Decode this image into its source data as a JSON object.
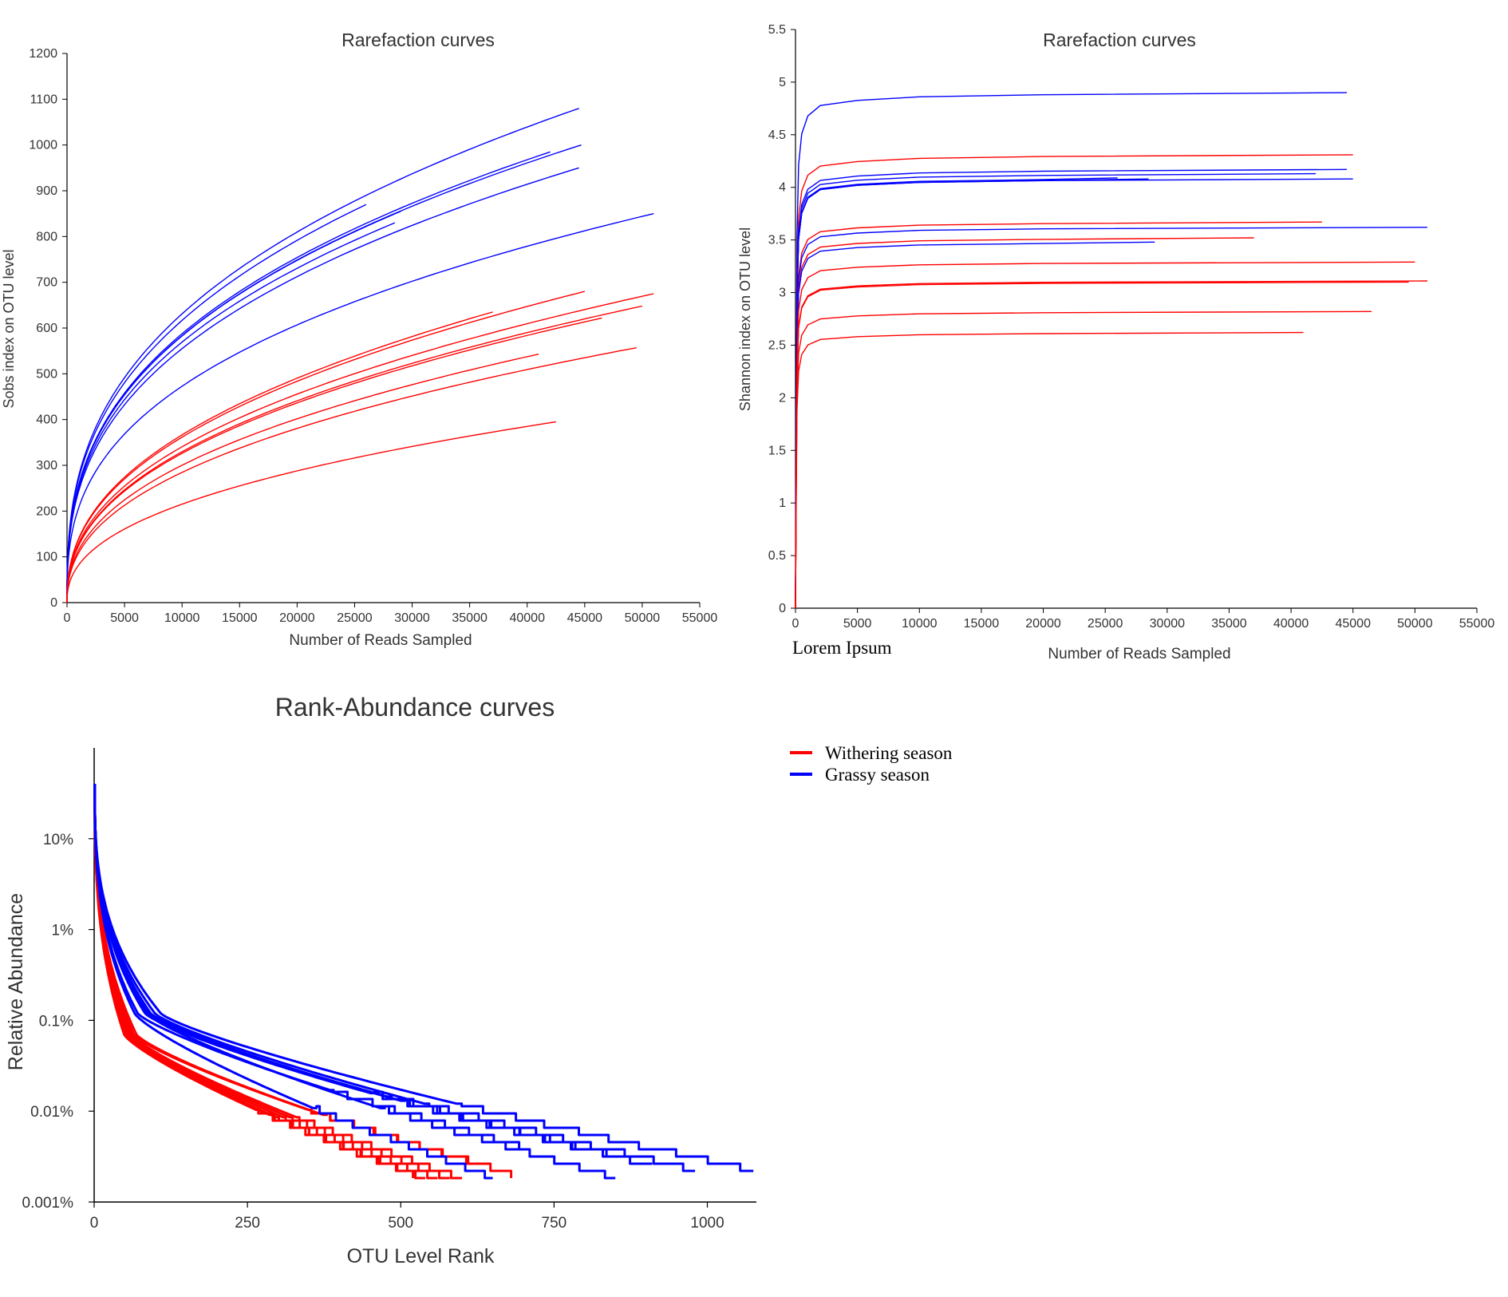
{
  "colors": {
    "withering": "#ff0000",
    "grassy": "#0000ff",
    "axis": "#000000",
    "text": "#333333"
  },
  "legend": {
    "items": [
      {
        "label": "Withering season",
        "color": "#ff0000"
      },
      {
        "label": "Grassy season",
        "color": "#0000ff"
      }
    ]
  },
  "annotation": "Lorem Ipsum",
  "chart_data": [
    {
      "id": "sobs",
      "type": "line",
      "title": "Rarefaction curves",
      "xlabel": "Number of Reads Sampled",
      "ylabel": "Sobs index on OTU level",
      "xlim": [
        0,
        55000
      ],
      "ylim": [
        0,
        1200
      ],
      "xticks": [
        "0",
        "5000",
        "10000",
        "15000",
        "20000",
        "25000",
        "30000",
        "35000",
        "40000",
        "45000",
        "50000",
        "55000"
      ],
      "yticks": [
        "0",
        "100",
        "200",
        "300",
        "400",
        "500",
        "600",
        "700",
        "800",
        "900",
        "1000",
        "1100",
        "1200"
      ],
      "series": [
        {
          "group": "grassy",
          "end_x": 44500,
          "end_y": 1080
        },
        {
          "group": "grassy",
          "end_x": 44700,
          "end_y": 1000
        },
        {
          "group": "grassy",
          "end_x": 42000,
          "end_y": 985
        },
        {
          "group": "grassy",
          "end_x": 44500,
          "end_y": 950
        },
        {
          "group": "grassy",
          "end_x": 26000,
          "end_y": 870
        },
        {
          "group": "grassy",
          "end_x": 29000,
          "end_y": 855
        },
        {
          "group": "grassy",
          "end_x": 28500,
          "end_y": 830
        },
        {
          "group": "grassy",
          "end_x": 51000,
          "end_y": 850
        },
        {
          "group": "withering",
          "end_x": 45000,
          "end_y": 680
        },
        {
          "group": "withering",
          "end_x": 51000,
          "end_y": 675
        },
        {
          "group": "withering",
          "end_x": 37000,
          "end_y": 635
        },
        {
          "group": "withering",
          "end_x": 50000,
          "end_y": 648
        },
        {
          "group": "withering",
          "end_x": 46500,
          "end_y": 622
        },
        {
          "group": "withering",
          "end_x": 41000,
          "end_y": 543
        },
        {
          "group": "withering",
          "end_x": 49500,
          "end_y": 557
        },
        {
          "group": "withering",
          "end_x": 42500,
          "end_y": 395
        }
      ]
    },
    {
      "id": "shannon",
      "type": "line",
      "title": "Rarefaction curves",
      "xlabel": "Number of Reads Sampled",
      "ylabel": "Shannon index on OTU level",
      "xlim": [
        0,
        55000
      ],
      "ylim": [
        0,
        5.5
      ],
      "xticks": [
        "0",
        "5000",
        "10000",
        "15000",
        "20000",
        "25000",
        "30000",
        "35000",
        "40000",
        "45000",
        "50000",
        "55000"
      ],
      "yticks": [
        "0",
        "0.5",
        "1",
        "1.5",
        "2",
        "2.5",
        "3",
        "3.5",
        "4",
        "4.5",
        "5",
        "5.5"
      ],
      "series": [
        {
          "group": "grassy",
          "end_x": 44500,
          "end_y": 4.9
        },
        {
          "group": "withering",
          "end_x": 45000,
          "end_y": 4.31
        },
        {
          "group": "grassy",
          "end_x": 44500,
          "end_y": 4.17
        },
        {
          "group": "grassy",
          "end_x": 42000,
          "end_y": 4.13
        },
        {
          "group": "grassy",
          "end_x": 26000,
          "end_y": 4.09
        },
        {
          "group": "grassy",
          "end_x": 45000,
          "end_y": 4.08
        },
        {
          "group": "grassy",
          "end_x": 28500,
          "end_y": 4.08
        },
        {
          "group": "withering",
          "end_x": 42500,
          "end_y": 3.67
        },
        {
          "group": "grassy",
          "end_x": 51000,
          "end_y": 3.62
        },
        {
          "group": "withering",
          "end_x": 37000,
          "end_y": 3.52
        },
        {
          "group": "grassy",
          "end_x": 29000,
          "end_y": 3.48
        },
        {
          "group": "withering",
          "end_x": 50000,
          "end_y": 3.29
        },
        {
          "group": "withering",
          "end_x": 51000,
          "end_y": 3.11
        },
        {
          "group": "withering",
          "end_x": 49500,
          "end_y": 3.1
        },
        {
          "group": "withering",
          "end_x": 46500,
          "end_y": 2.82
        },
        {
          "group": "withering",
          "end_x": 41000,
          "end_y": 2.62
        }
      ]
    },
    {
      "id": "rank",
      "type": "line",
      "title": "Rank-Abundance curves",
      "xlabel": "OTU Level Rank",
      "ylabel": "Relative Abundance",
      "xlim": [
        0,
        1080
      ],
      "ylim": [
        0.001,
        100
      ],
      "log_y": true,
      "xticks": [
        {
          "v": 0,
          "label": "0"
        },
        {
          "v": 250,
          "label": "250"
        },
        {
          "v": 500,
          "label": "500"
        },
        {
          "v": 750,
          "label": "750"
        },
        {
          "v": 1000,
          "label": "1000"
        }
      ],
      "yticks": [
        {
          "v": 0.001,
          "label": "0.001%"
        },
        {
          "v": 0.01,
          "label": "0.01%"
        },
        {
          "v": 0.1,
          "label": "0.1%"
        },
        {
          "v": 1,
          "label": "1%"
        },
        {
          "v": 10,
          "label": "10%"
        }
      ],
      "series": [
        {
          "group": "withering",
          "max_rank": 635,
          "min_abundance": 0.0025
        },
        {
          "group": "withering",
          "max_rank": 680,
          "min_abundance": 0.002
        },
        {
          "group": "withering",
          "max_rank": 560,
          "min_abundance": 0.0018
        },
        {
          "group": "withering",
          "max_rank": 600,
          "min_abundance": 0.0018
        },
        {
          "group": "withering",
          "max_rank": 540,
          "min_abundance": 0.0018
        },
        {
          "group": "withering",
          "max_rank": 580,
          "min_abundance": 0.0018
        },
        {
          "group": "withering",
          "max_rank": 520,
          "min_abundance": 0.002
        },
        {
          "group": "withering",
          "max_rank": 480,
          "min_abundance": 0.0025
        },
        {
          "group": "grassy",
          "max_rank": 1075,
          "min_abundance": 0.0022
        },
        {
          "group": "grassy",
          "max_rank": 980,
          "min_abundance": 0.0022
        },
        {
          "group": "grassy",
          "max_rank": 910,
          "min_abundance": 0.0025
        },
        {
          "group": "grassy",
          "max_rank": 870,
          "min_abundance": 0.003
        },
        {
          "group": "grassy",
          "max_rank": 850,
          "min_abundance": 0.0018
        },
        {
          "group": "grassy",
          "max_rank": 820,
          "min_abundance": 0.0035
        },
        {
          "group": "grassy",
          "max_rank": 650,
          "min_abundance": 0.0018
        },
        {
          "group": "grassy",
          "max_rank": 700,
          "min_abundance": 0.004
        }
      ]
    }
  ]
}
